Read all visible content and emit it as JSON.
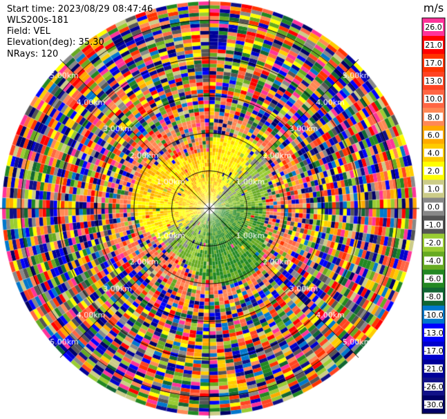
{
  "header": {
    "start_time": "Start time: 2023/08/29 08:47:46",
    "instrument": "WLS200s-181",
    "field": "Field: VEL",
    "elevation": "Elevation(deg): 35.30",
    "nrays": "NRays: 120"
  },
  "chart_data": {
    "type": "heatmap",
    "projection": "polar-ppi",
    "nrays": 120,
    "range_rings_km": [
      1,
      2,
      3,
      4,
      5
    ],
    "ring_labels": [
      "1.00km",
      "2.00km",
      "3.00km",
      "4.00km",
      "5.00km"
    ],
    "valid_data_max_range_km": 2.0,
    "pattern": "noise (random velocities) beyond about 2 km; near field positive velocities (yellow/orange) to the north and west, negative velocities (green/gray) to the south and east",
    "colorbar": {
      "unit": "m/s",
      "tick_labels": [
        "26.0",
        "21.0",
        "17.0",
        "13.0",
        "10.0",
        "8.0",
        "6.0",
        "4.0",
        "2.0",
        "1.0",
        "0.0",
        "-1.0",
        "-2.0",
        "-4.0",
        "-6.0",
        "-8.0",
        "-10.0",
        "-13.0",
        "-17.0",
        "-21.0",
        "-26.0",
        "-30.0"
      ],
      "colors": [
        "#ff3399",
        "#ff0000",
        "#ff3300",
        "#ff4422",
        "#ff6644",
        "#ff8855",
        "#ffaa00",
        "#ffcc00",
        "#ffff00",
        "#cccc88",
        "#888888",
        "#555555",
        "#99cc33",
        "#66aa22",
        "#228822",
        "#116633",
        "#0077cc",
        "#0000ff",
        "#0000cc",
        "#000099",
        "#111188",
        "#000066"
      ]
    }
  }
}
